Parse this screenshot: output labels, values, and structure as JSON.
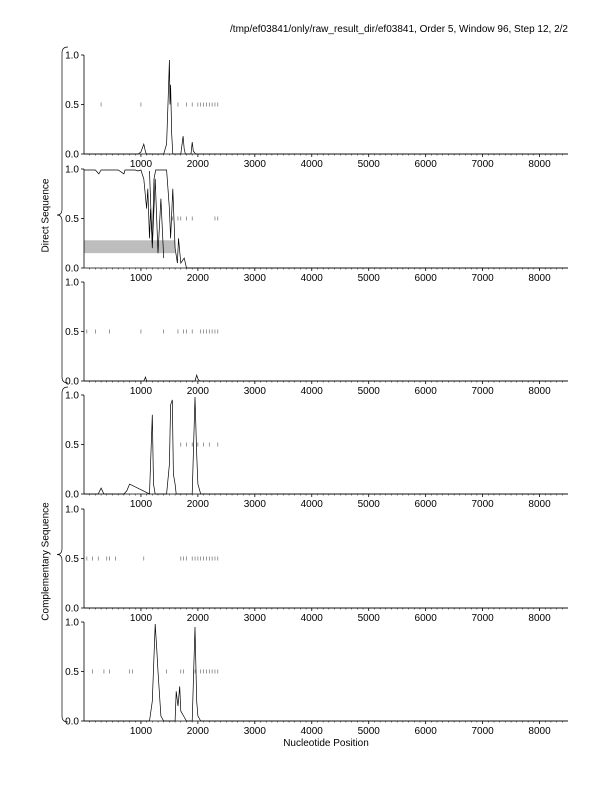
{
  "header": {
    "title": "/tmp/ef03841/only/raw_result_dir/ef03841, Order 5, Window 96, Step 12, 2/2"
  },
  "side_labels": {
    "direct": "Direct Sequence",
    "complementary": "Complementary Sequence"
  },
  "chart_data": {
    "type": "line",
    "xlabel": "Nucleotide Position",
    "xlim": [
      0,
      8500
    ],
    "ylim": [
      0,
      1
    ],
    "x_ticks": [
      1000,
      2000,
      3000,
      4000,
      5000,
      6000,
      7000,
      8000
    ],
    "y_ticks": [
      "0.0",
      "0.5",
      "1.0"
    ],
    "panels": [
      {
        "group": "direct",
        "series": [
          {
            "x": [
              0,
              950,
              1000,
              1050,
              1080,
              1100,
              1400,
              1450,
              1480,
              1500,
              1510,
              1520,
              1540,
              1560,
              1600,
              1700,
              1740,
              1760,
              1780,
              1800,
              1880,
              1900,
              1920,
              1960,
              2000,
              8500
            ],
            "y": [
              0,
              0,
              0.02,
              0.1,
              0.02,
              0,
              0,
              0.1,
              0.6,
              0.95,
              0.5,
              0.7,
              0.2,
              0,
              0,
              0,
              0.18,
              0.05,
              0,
              0,
              0,
              0.12,
              0.03,
              0,
              0,
              0
            ]
          }
        ],
        "ticks_y": 0.5,
        "ticks_x": [
          300,
          1000,
          1650,
          1800,
          1900,
          2000,
          2050,
          2100,
          2150,
          2200,
          2250,
          2300,
          2350
        ]
      },
      {
        "group": "direct",
        "series": [
          {
            "x": [
              0,
              200,
              260,
              300,
              600,
              700,
              720,
              740,
              900,
              950,
              1000,
              1050,
              1100,
              1120,
              1150,
              1170,
              1200,
              1230,
              1260,
              1300,
              1400,
              1450,
              1500,
              1520,
              1560,
              1600,
              1640,
              1660,
              1700,
              1760,
              1800,
              8500
            ],
            "y": [
              0.99,
              0.99,
              0.95,
              0.99,
              0.99,
              0.95,
              0.99,
              0.99,
              0.99,
              0.98,
              0.99,
              0.9,
              0.6,
              0.8,
              0.3,
              0.6,
              0.25,
              0.9,
              0.99,
              0.99,
              0.99,
              0.99,
              0.6,
              0.3,
              0.8,
              0.2,
              0.05,
              0.3,
              0.05,
              0.1,
              0,
              0
            ]
          },
          {
            "x": [
              1150,
              1200,
              1250,
              1300,
              1350,
              1400
            ],
            "y": [
              0.98,
              0.2,
              0.9,
              0.15,
              0.7,
              0.1
            ]
          }
        ],
        "ticks_y": 0.5,
        "ticks_x": [
          1550,
          1650,
          1700,
          1800,
          1900,
          2300,
          2350
        ],
        "shade": {
          "x0": 0,
          "x1": 1600,
          "y0": 0.15,
          "y1": 0.28
        }
      },
      {
        "group": "direct",
        "series": [
          {
            "x": [
              0,
              1050,
              1080,
              1100,
              1950,
              1980,
              2000,
              2030,
              8500
            ],
            "y": [
              0,
              0,
              0.04,
              0,
              0,
              0.06,
              0.02,
              0,
              0
            ]
          }
        ],
        "ticks_y": 0.5,
        "ticks_x": [
          50,
          200,
          450,
          1000,
          1400,
          1650,
          1750,
          1800,
          1900,
          2050,
          2100,
          2150,
          2200,
          2250,
          2300,
          2350
        ]
      },
      {
        "group": "complementary",
        "series": [
          {
            "x": [
              0,
              250,
              300,
              350,
              700,
              750,
              800,
              1150,
              1200,
              1220,
              1250,
              1450,
              1500,
              1520,
              1550,
              1570,
              1600,
              1620,
              1900,
              1950,
              1980,
              2000,
              2050,
              8500
            ],
            "y": [
              0,
              0,
              0.06,
              0,
              0,
              0.03,
              0.1,
              0,
              0.8,
              0.1,
              0,
              0,
              0.3,
              0.9,
              0.95,
              0.2,
              0.1,
              0,
              0,
              0.98,
              0.4,
              0.1,
              0,
              0
            ]
          }
        ],
        "ticks_y": 0.5,
        "ticks_x": [
          1700,
          1800,
          1900,
          2000,
          2100,
          2200,
          2350
        ]
      },
      {
        "group": "complementary",
        "series": [
          {
            "x": [
              0,
              8500
            ],
            "y": [
              0,
              0
            ]
          }
        ],
        "ticks_y": 0.5,
        "ticks_x": [
          50,
          150,
          250,
          400,
          450,
          550,
          1050,
          1700,
          1750,
          1800,
          1900,
          1950,
          2000,
          2050,
          2100,
          2150,
          2200,
          2250,
          2300,
          2350
        ]
      },
      {
        "group": "complementary",
        "series": [
          {
            "x": [
              0,
              1150,
              1200,
              1250,
              1280,
              1300,
              1350,
              1400,
              1600,
              1620,
              1650,
              1680,
              1700,
              1750,
              1800,
              1900,
              1950,
              1980,
              2000,
              2050,
              8500
            ],
            "y": [
              0,
              0,
              0.2,
              0.98,
              0.7,
              0.5,
              0.05,
              0,
              0,
              0.3,
              0.15,
              0.35,
              0.1,
              0.05,
              0,
              0,
              0.95,
              0.2,
              0.05,
              0,
              0
            ]
          }
        ],
        "ticks_y": 0.5,
        "ticks_x": [
          150,
          350,
          450,
          800,
          850,
          1450,
          1700,
          1750,
          1950,
          2050,
          2100,
          2150,
          2200,
          2250,
          2300,
          2350
        ]
      }
    ]
  }
}
